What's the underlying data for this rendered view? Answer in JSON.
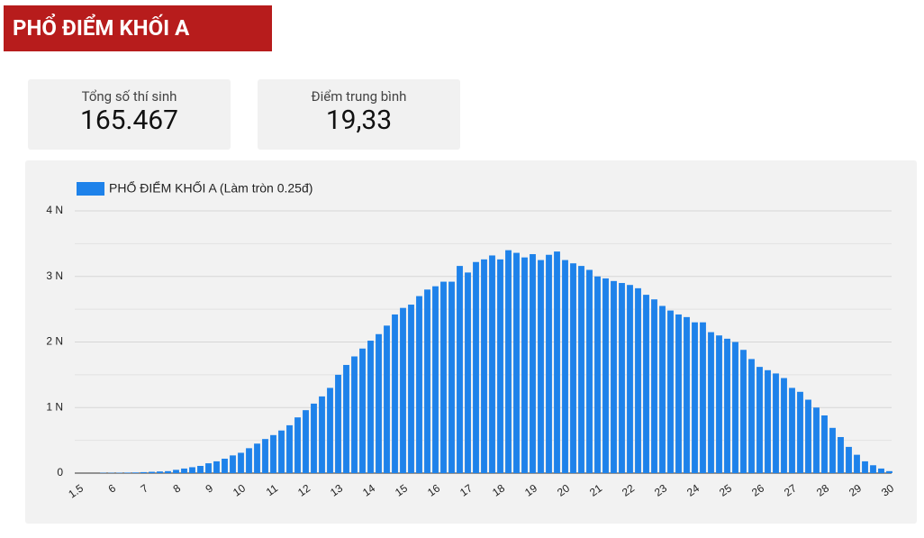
{
  "header": {
    "title": "PHỔ ĐIỂM KHỐI A"
  },
  "stats": [
    {
      "label": "Tổng số thí sinh",
      "value": "165.467"
    },
    {
      "label": "Điểm trung bình",
      "value": "19,33"
    }
  ],
  "chart_data": {
    "type": "bar",
    "series": [
      {
        "name": "PHỔ ĐIỂM KHỐI A (Làm tròn 0.25đ)",
        "color": "#1e82ea",
        "values": [
          0,
          0,
          0,
          0.005,
          0.005,
          0.006,
          0.008,
          0.01,
          0.015,
          0.02,
          0.025,
          0.03,
          0.05,
          0.07,
          0.09,
          0.11,
          0.15,
          0.18,
          0.22,
          0.27,
          0.31,
          0.38,
          0.45,
          0.52,
          0.58,
          0.65,
          0.73,
          0.85,
          0.96,
          1.06,
          1.17,
          1.3,
          1.5,
          1.65,
          1.78,
          1.9,
          2.02,
          2.12,
          2.25,
          2.42,
          2.52,
          2.57,
          2.7,
          2.8,
          2.85,
          2.92,
          2.92,
          3.16,
          3.06,
          3.22,
          3.26,
          3.32,
          3.26,
          3.4,
          3.36,
          3.29,
          3.34,
          3.25,
          3.33,
          3.38,
          3.25,
          3.2,
          3.16,
          3.1,
          3.0,
          2.97,
          2.93,
          2.9,
          2.87,
          2.82,
          2.72,
          2.65,
          2.55,
          2.48,
          2.42,
          2.38,
          2.3,
          2.3,
          2.15,
          2.1,
          2.05,
          2.0,
          1.88,
          1.74,
          1.62,
          1.57,
          1.52,
          1.45,
          1.3,
          1.24,
          1.12,
          1.0,
          0.88,
          0.69,
          0.55,
          0.4,
          0.28,
          0.18,
          0.12,
          0.07,
          0.03
        ]
      }
    ],
    "categories": [
      1.5,
      null,
      null,
      null,
      6,
      null,
      null,
      null,
      7,
      null,
      null,
      null,
      8,
      null,
      null,
      null,
      9,
      null,
      null,
      null,
      10,
      null,
      null,
      null,
      11,
      null,
      null,
      null,
      12,
      null,
      null,
      null,
      13,
      null,
      null,
      null,
      14,
      null,
      null,
      null,
      15,
      null,
      null,
      null,
      16,
      null,
      null,
      null,
      17,
      null,
      null,
      null,
      18,
      null,
      null,
      null,
      19,
      null,
      null,
      null,
      20,
      null,
      null,
      null,
      21,
      null,
      null,
      null,
      22,
      null,
      null,
      null,
      23,
      null,
      null,
      null,
      24,
      null,
      null,
      null,
      25,
      null,
      null,
      null,
      26,
      null,
      null,
      null,
      27,
      null,
      null,
      null,
      28,
      null,
      null,
      null,
      29,
      null,
      null,
      null,
      30
    ],
    "ylim": [
      0,
      4
    ],
    "yticks": [
      0,
      {
        "value": 1,
        "label": "1 N"
      },
      {
        "value": 2,
        "label": "2 N"
      },
      {
        "value": 3,
        "label": "3 N"
      },
      {
        "value": 4,
        "label": "4 N"
      }
    ],
    "grid": true,
    "minor_grid": true,
    "legend": "top-left"
  }
}
